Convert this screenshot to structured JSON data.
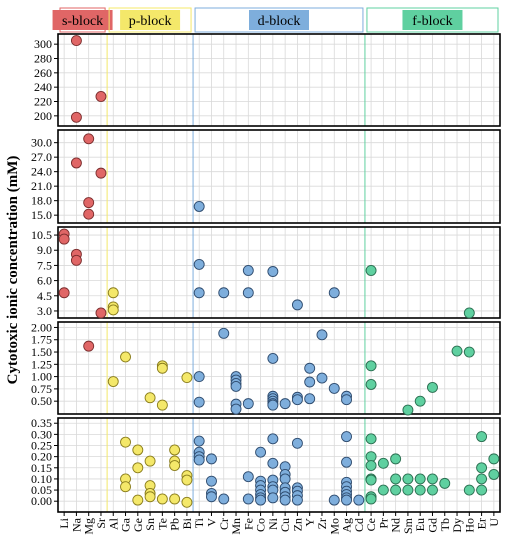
{
  "chart_data": {
    "type": "scatter",
    "ylabel": "Cytotoxic ionic concentration (mM)",
    "colors": {
      "s-block": "#e06666",
      "p-block": "#f4e86a",
      "d-block": "#7eaedc",
      "f-block": "#5fd0a0",
      "grid": "#d9d9d9"
    },
    "blocks": [
      {
        "name": "s-block",
        "categories": [
          "Li",
          "Na",
          "Mg",
          "Sr"
        ]
      },
      {
        "name": "p-block",
        "categories": [
          "Al",
          "Ga",
          "Ge",
          "Sn",
          "Te",
          "Pb",
          "Bi"
        ]
      },
      {
        "name": "d-block",
        "categories": [
          "Ti",
          "V",
          "Cr",
          "Mn",
          "Fe",
          "Co",
          "Ni",
          "Cu",
          "Zn",
          "Y",
          "Zr",
          "Mo",
          "Ag",
          "Cd"
        ]
      },
      {
        "name": "f-block",
        "categories": [
          "Ce",
          "Pr",
          "Nd",
          "Sm",
          "Eu",
          "Gd",
          "Tb",
          "Dy",
          "Ho",
          "Er",
          "U"
        ]
      }
    ],
    "categories": [
      "Li",
      "Na",
      "Mg",
      "Sr",
      "Al",
      "Ga",
      "Ge",
      "Sn",
      "Te",
      "Pb",
      "Bi",
      "Ti",
      "V",
      "Cr",
      "Mn",
      "Fe",
      "Co",
      "Ni",
      "Cu",
      "Zn",
      "Y",
      "Zr",
      "Mo",
      "Ag",
      "Cd",
      "Ce",
      "Pr",
      "Nd",
      "Sm",
      "Eu",
      "Gd",
      "Tb",
      "Dy",
      "Ho",
      "Er",
      "U"
    ],
    "panels": [
      {
        "ylim": [
          190,
          310
        ],
        "ticks": [
          "200",
          "220",
          "240",
          "260",
          "280",
          "300"
        ]
      },
      {
        "ylim": [
          14,
          32
        ],
        "ticks": [
          "15.0",
          "18.0",
          "21.0",
          "24.0",
          "27.0",
          "30.0"
        ]
      },
      {
        "ylim": [
          2.6,
          11
        ],
        "ticks": [
          "3.0",
          "4.5",
          "6.0",
          "7.5",
          "9.0",
          "10.5"
        ]
      },
      {
        "ylim": [
          0.3,
          2.05
        ],
        "ticks": [
          "0.50",
          "0.75",
          "1.00",
          "1.25",
          "1.50",
          "1.75",
          "2.00"
        ]
      },
      {
        "ylim": [
          -0.035,
          0.36
        ],
        "ticks": [
          "0.00",
          "0.05",
          "0.10",
          "0.15",
          "0.20",
          "0.25",
          "0.30",
          "0.35"
        ]
      }
    ],
    "series": [
      {
        "name": "s-block",
        "points": [
          {
            "x": "Na",
            "y": 305
          },
          {
            "x": "Na",
            "y": 198
          },
          {
            "x": "Sr",
            "y": 227
          },
          {
            "x": "Mg",
            "y": 30.8
          },
          {
            "x": "Na",
            "y": 25.8
          },
          {
            "x": "Sr",
            "y": 23.7
          },
          {
            "x": "Mg",
            "y": 17.6
          },
          {
            "x": "Mg",
            "y": 15.2
          },
          {
            "x": "Li",
            "y": 10.6
          },
          {
            "x": "Li",
            "y": 10.1
          },
          {
            "x": "Na",
            "y": 8.6
          },
          {
            "x": "Na",
            "y": 8.0
          },
          {
            "x": "Li",
            "y": 4.8
          },
          {
            "x": "Sr",
            "y": 2.8
          },
          {
            "x": "Mg",
            "y": 1.62
          }
        ]
      },
      {
        "name": "p-block",
        "points": [
          {
            "x": "Al",
            "y": 4.8
          },
          {
            "x": "Al",
            "y": 3.4
          },
          {
            "x": "Al",
            "y": 3.1
          },
          {
            "x": "Ga",
            "y": 1.4
          },
          {
            "x": "Te",
            "y": 1.22
          },
          {
            "x": "Te",
            "y": 1.17
          },
          {
            "x": "Bi",
            "y": 0.98
          },
          {
            "x": "Al",
            "y": 0.9
          },
          {
            "x": "Sn",
            "y": 0.57
          },
          {
            "x": "Te",
            "y": 0.42
          },
          {
            "x": "Ga",
            "y": 0.265
          },
          {
            "x": "Ge",
            "y": 0.23
          },
          {
            "x": "Pb",
            "y": 0.23
          },
          {
            "x": "Sn",
            "y": 0.18
          },
          {
            "x": "Pb",
            "y": 0.18
          },
          {
            "x": "Ge",
            "y": 0.15
          },
          {
            "x": "Pb",
            "y": 0.16
          },
          {
            "x": "Bi",
            "y": 0.115
          },
          {
            "x": "Ga",
            "y": 0.1
          },
          {
            "x": "Bi",
            "y": 0.095
          },
          {
            "x": "Ga",
            "y": 0.065
          },
          {
            "x": "Sn",
            "y": 0.07
          },
          {
            "x": "Sn",
            "y": 0.035
          },
          {
            "x": "Sn",
            "y": 0.02
          },
          {
            "x": "Ge",
            "y": 0.005
          },
          {
            "x": "Pb",
            "y": 0.01
          },
          {
            "x": "Te",
            "y": 0.01
          },
          {
            "x": "Bi",
            "y": -0.005
          }
        ]
      },
      {
        "name": "d-block",
        "points": [
          {
            "x": "Ti",
            "y": 16.8
          },
          {
            "x": "Ti",
            "y": 7.6
          },
          {
            "x": "Fe",
            "y": 7.0
          },
          {
            "x": "Ni",
            "y": 6.9
          },
          {
            "x": "Ti",
            "y": 4.8
          },
          {
            "x": "Cr",
            "y": 4.8
          },
          {
            "x": "Fe",
            "y": 4.8
          },
          {
            "x": "Mo",
            "y": 4.8
          },
          {
            "x": "Zn",
            "y": 3.6
          },
          {
            "x": "Cr",
            "y": 1.88
          },
          {
            "x": "Zr",
            "y": 1.85
          },
          {
            "x": "Ni",
            "y": 1.37
          },
          {
            "x": "Y",
            "y": 1.17
          },
          {
            "x": "Ti",
            "y": 1.0
          },
          {
            "x": "Mn",
            "y": 1.0
          },
          {
            "x": "Zr",
            "y": 0.97
          },
          {
            "x": "Mn",
            "y": 0.93
          },
          {
            "x": "Mn",
            "y": 0.86
          },
          {
            "x": "Y",
            "y": 0.89
          },
          {
            "x": "Mn",
            "y": 0.8
          },
          {
            "x": "Mo",
            "y": 0.76
          },
          {
            "x": "Ag",
            "y": 0.6
          },
          {
            "x": "Ni",
            "y": 0.6
          },
          {
            "x": "Zn",
            "y": 0.58
          },
          {
            "x": "Y",
            "y": 0.55
          },
          {
            "x": "Ni",
            "y": 0.55
          },
          {
            "x": "Ag",
            "y": 0.53
          },
          {
            "x": "Zn",
            "y": 0.53
          },
          {
            "x": "Ti",
            "y": 0.48
          },
          {
            "x": "Ni",
            "y": 0.5
          },
          {
            "x": "Fe",
            "y": 0.45
          },
          {
            "x": "Ni",
            "y": 0.45
          },
          {
            "x": "Cu",
            "y": 0.45
          },
          {
            "x": "Mn",
            "y": 0.44
          },
          {
            "x": "Ni",
            "y": 0.42
          },
          {
            "x": "Mn",
            "y": 0.34
          },
          {
            "x": "Ni",
            "y": 0.28
          },
          {
            "x": "Ag",
            "y": 0.29
          },
          {
            "x": "Ti",
            "y": 0.27
          },
          {
            "x": "Zn",
            "y": 0.26
          },
          {
            "x": "Co",
            "y": 0.22
          },
          {
            "x": "Ti",
            "y": 0.22
          },
          {
            "x": "Ti",
            "y": 0.2
          },
          {
            "x": "V",
            "y": 0.19
          },
          {
            "x": "Ti",
            "y": 0.185
          },
          {
            "x": "Ni",
            "y": 0.17
          },
          {
            "x": "Cu",
            "y": 0.155
          },
          {
            "x": "Ag",
            "y": 0.175
          },
          {
            "x": "Cu",
            "y": 0.12
          },
          {
            "x": "Fe",
            "y": 0.11
          },
          {
            "x": "Cu",
            "y": 0.1
          },
          {
            "x": "Ni",
            "y": 0.095
          },
          {
            "x": "Co",
            "y": 0.09
          },
          {
            "x": "V",
            "y": 0.09
          },
          {
            "x": "Ag",
            "y": 0.085
          },
          {
            "x": "Co",
            "y": 0.07
          },
          {
            "x": "Ni",
            "y": 0.065
          },
          {
            "x": "Cu",
            "y": 0.06
          },
          {
            "x": "Zn",
            "y": 0.06
          },
          {
            "x": "Ag",
            "y": 0.065
          },
          {
            "x": "Ni",
            "y": 0.05
          },
          {
            "x": "Co",
            "y": 0.05
          },
          {
            "x": "Zn",
            "y": 0.045
          },
          {
            "x": "Ag",
            "y": 0.045
          },
          {
            "x": "Cu",
            "y": 0.04
          },
          {
            "x": "V",
            "y": 0.035
          },
          {
            "x": "Co",
            "y": 0.03
          },
          {
            "x": "Zn",
            "y": 0.025
          },
          {
            "x": "Ag",
            "y": 0.03
          },
          {
            "x": "V",
            "y": 0.02
          },
          {
            "x": "Cu",
            "y": 0.02
          },
          {
            "x": "Co",
            "y": 0.015
          },
          {
            "x": "Ni",
            "y": 0.015
          },
          {
            "x": "Ag",
            "y": 0.015
          },
          {
            "x": "Cr",
            "y": 0.01
          },
          {
            "x": "Fe",
            "y": 0.01
          },
          {
            "x": "Mo",
            "y": 0.005
          },
          {
            "x": "Co",
            "y": 0.005
          },
          {
            "x": "Cu",
            "y": 0.005
          },
          {
            "x": "Zn",
            "y": 0.005
          },
          {
            "x": "Cd",
            "y": 0.005
          },
          {
            "x": "Ag",
            "y": 0.005
          }
        ]
      },
      {
        "name": "f-block",
        "points": [
          {
            "x": "Ce",
            "y": 7.0
          },
          {
            "x": "Ho",
            "y": 2.8
          },
          {
            "x": "Dy",
            "y": 1.52
          },
          {
            "x": "Ho",
            "y": 1.5
          },
          {
            "x": "Ce",
            "y": 1.22
          },
          {
            "x": "Ce",
            "y": 0.84
          },
          {
            "x": "Gd",
            "y": 0.78
          },
          {
            "x": "Eu",
            "y": 0.5
          },
          {
            "x": "Sm",
            "y": 0.32
          },
          {
            "x": "Er",
            "y": 0.29
          },
          {
            "x": "Ce",
            "y": 0.28
          },
          {
            "x": "Ce",
            "y": 0.2
          },
          {
            "x": "Nd",
            "y": 0.19
          },
          {
            "x": "U",
            "y": 0.19
          },
          {
            "x": "Pr",
            "y": 0.17
          },
          {
            "x": "Ce",
            "y": 0.16
          },
          {
            "x": "Er",
            "y": 0.15
          },
          {
            "x": "U",
            "y": 0.12
          },
          {
            "x": "Ce",
            "y": 0.1
          },
          {
            "x": "Ce",
            "y": 0.095
          },
          {
            "x": "Nd",
            "y": 0.1
          },
          {
            "x": "Sm",
            "y": 0.1
          },
          {
            "x": "Eu",
            "y": 0.1
          },
          {
            "x": "Gd",
            "y": 0.1
          },
          {
            "x": "Er",
            "y": 0.1
          },
          {
            "x": "Tb",
            "y": 0.08
          },
          {
            "x": "Pr",
            "y": 0.05
          },
          {
            "x": "Nd",
            "y": 0.05
          },
          {
            "x": "Sm",
            "y": 0.05
          },
          {
            "x": "Eu",
            "y": 0.05
          },
          {
            "x": "Gd",
            "y": 0.05
          },
          {
            "x": "Ho",
            "y": 0.05
          },
          {
            "x": "Er",
            "y": 0.05
          },
          {
            "x": "Ce",
            "y": 0.02
          },
          {
            "x": "Ce",
            "y": 0.01
          }
        ]
      }
    ]
  }
}
